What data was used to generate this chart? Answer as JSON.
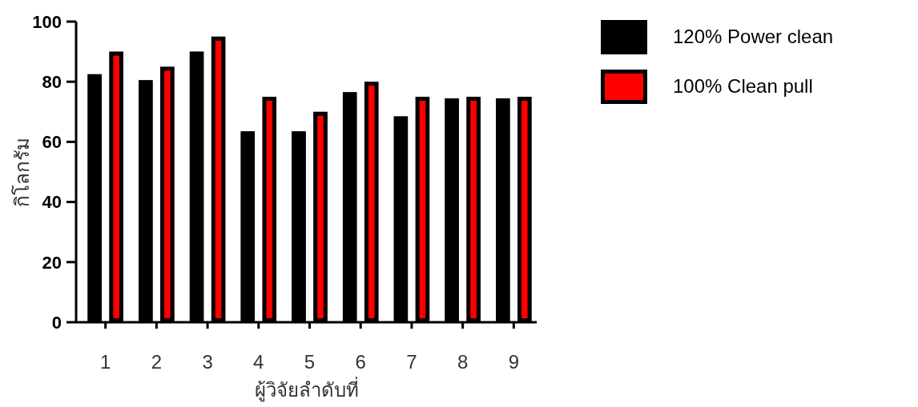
{
  "chart_data": {
    "type": "bar",
    "xlabel": "ผู้วิจัยลำดับที่",
    "ylabel": "กิโลกรัม",
    "categories": [
      "1",
      "2",
      "3",
      "4",
      "5",
      "6",
      "7",
      "8",
      "9"
    ],
    "series": [
      {
        "name": "120% Power clean",
        "color": "#000000",
        "values": [
          82.5,
          80.5,
          90,
          63.5,
          63.5,
          76.5,
          68.5,
          74.5,
          74.5
        ]
      },
      {
        "name": "100% Clean pull",
        "color": "#ff0000",
        "values": [
          90,
          85,
          95,
          75,
          70,
          80,
          75,
          75,
          75
        ]
      }
    ],
    "ylim": [
      0,
      100
    ],
    "yticks": [
      0,
      20,
      40,
      60,
      80,
      100
    ],
    "grid": false,
    "legend": "right"
  }
}
